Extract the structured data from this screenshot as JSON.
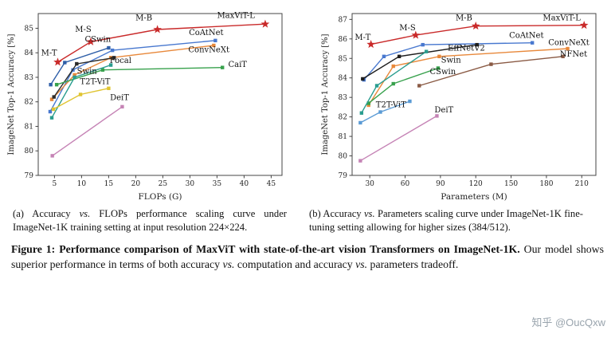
{
  "watermark": {
    "text": "知乎 @OucQxw",
    "color": "#99a4ad"
  },
  "captions": {
    "a": {
      "parts": [
        {
          "t": "(a) Accuracy "
        },
        {
          "t": "vs.",
          "i": true
        },
        {
          "t": " FLOPs performance scaling curve under ImageNet-1K training setting at input resolution 224×224."
        }
      ]
    },
    "b": {
      "parts": [
        {
          "t": "(b) Accuracy "
        },
        {
          "t": "vs.",
          "i": true
        },
        {
          "t": " Parameters scaling curve under ImageNet-1K fine-tuning setting allowing for higher sizes (384/512)."
        }
      ]
    },
    "figure": {
      "parts": [
        {
          "t": "Figure 1: ",
          "b": true
        },
        {
          "t": "Performance comparison of MaxViT with state-of-the-art vision Transformers on ImageNet-1K.",
          "b": true
        },
        {
          "t": " Our model shows superior performance in terms of both accuracy "
        },
        {
          "t": "vs.",
          "i": true
        },
        {
          "t": " computation and accuracy "
        },
        {
          "t": "vs.",
          "i": true
        },
        {
          "t": " parameters tradeoff."
        }
      ]
    }
  },
  "chart_data": [
    {
      "type": "line",
      "title": "",
      "xlabel": "FLOPs (G)",
      "ylabel": "ImageNet Top-1 Accuracy [%]",
      "xlim": [
        2,
        47
      ],
      "ylim": [
        79,
        85.6
      ],
      "xticks": [
        5,
        10,
        15,
        20,
        25,
        30,
        35,
        40,
        45
      ],
      "yticks": [
        79,
        80,
        81,
        82,
        83,
        84,
        85
      ],
      "grid": false,
      "legend": "inline-annotations",
      "series": [
        {
          "name": "MaxViT",
          "color": "#c92a2a",
          "marker": "star",
          "points": [
            [
              5.6,
              83.62
            ],
            [
              11.7,
              84.45
            ],
            [
              24,
              84.95
            ],
            [
              43.9,
              85.17
            ]
          ],
          "annotations": [
            {
              "text": "M-T",
              "x": 4.0,
              "y": 83.9
            },
            {
              "text": "M-S",
              "x": 10.3,
              "y": 84.85
            },
            {
              "text": "M-B",
              "x": 21.5,
              "y": 85.32
            },
            {
              "text": "MaxViT-L",
              "x": 38.5,
              "y": 85.42
            }
          ]
        },
        {
          "name": "CoAtNet",
          "color": "#4878cf",
          "marker": "square",
          "points": [
            [
              4.2,
              81.6
            ],
            [
              8.4,
              83.3
            ],
            [
              15.7,
              84.1
            ],
            [
              34.7,
              84.5
            ]
          ],
          "annotations": [
            {
              "text": "CoAtNet",
              "x": 33,
              "y": 84.72
            }
          ]
        },
        {
          "name": "CSwin",
          "color": "#2f5fa8",
          "marker": "square",
          "points": [
            [
              4.3,
              82.7
            ],
            [
              6.9,
              83.6
            ],
            [
              15,
              84.2
            ]
          ],
          "annotations": [
            {
              "text": "CSwin",
              "x": 13,
              "y": 84.45
            }
          ]
        },
        {
          "name": "ConvNeXt",
          "color": "#e8883a",
          "marker": "square",
          "points": [
            [
              4.5,
              82.1
            ],
            [
              8.7,
              83.1
            ],
            [
              15.4,
              83.8
            ],
            [
              34.4,
              84.3
            ]
          ],
          "annotations": [
            {
              "text": "ConvNeXt",
              "x": 33.5,
              "y": 84.02
            }
          ]
        },
        {
          "name": "Focal",
          "color": "#2b2b2b",
          "marker": "square",
          "points": [
            [
              4.9,
              82.2
            ],
            [
              9.1,
              83.55
            ],
            [
              16,
              83.8
            ]
          ],
          "annotations": [
            {
              "text": "Focal",
              "x": 17.2,
              "y": 83.58
            }
          ]
        },
        {
          "name": "CaiT",
          "color": "#37a14c",
          "marker": "square",
          "points": [
            [
              5.4,
              82.7
            ],
            [
              13.9,
              83.3
            ],
            [
              36,
              83.4
            ]
          ],
          "annotations": [
            {
              "text": "CaiT",
              "x": 38.8,
              "y": 83.42
            }
          ]
        },
        {
          "name": "Swin",
          "color": "#2a9d8f",
          "marker": "square",
          "points": [
            [
              4.5,
              81.35
            ],
            [
              8.7,
              83.0
            ],
            [
              15.4,
              83.5
            ]
          ],
          "annotations": [
            {
              "text": "Swin",
              "x": 11,
              "y": 83.15
            }
          ]
        },
        {
          "name": "T2T-ViT",
          "color": "#e0c431",
          "marker": "square",
          "points": [
            [
              4.8,
              81.7
            ],
            [
              9.8,
              82.3
            ],
            [
              15,
              82.55
            ]
          ],
          "annotations": [
            {
              "text": "T2T-ViT",
              "x": 12.5,
              "y": 82.72
            }
          ]
        },
        {
          "name": "DeiT",
          "color": "#c583b5",
          "marker": "square",
          "points": [
            [
              4.6,
              79.8
            ],
            [
              17.5,
              81.8
            ]
          ],
          "annotations": [
            {
              "text": "DeiT",
              "x": 17,
              "y": 82.08
            }
          ]
        }
      ]
    },
    {
      "type": "line",
      "title": "",
      "xlabel": "Parameters (M)",
      "ylabel": "ImageNet Top-1 Accuracy [%]",
      "xlim": [
        15,
        222
      ],
      "ylim": [
        79,
        87.3
      ],
      "xticks": [
        30,
        60,
        90,
        120,
        150,
        180,
        210
      ],
      "yticks": [
        79,
        80,
        81,
        82,
        83,
        84,
        85,
        86,
        87
      ],
      "grid": false,
      "legend": "inline-annotations",
      "series": [
        {
          "name": "MaxViT",
          "color": "#c92a2a",
          "marker": "star",
          "points": [
            [
              31,
              85.72
            ],
            [
              69,
              86.19
            ],
            [
              120,
              86.66
            ],
            [
              212,
              86.7
            ]
          ],
          "annotations": [
            {
              "text": "M-T",
              "x": 24,
              "y": 85.95
            },
            {
              "text": "M-S",
              "x": 62,
              "y": 86.45
            },
            {
              "text": "M-B",
              "x": 110,
              "y": 86.95
            },
            {
              "text": "MaxViT-L",
              "x": 193,
              "y": 86.95
            }
          ]
        },
        {
          "name": "CoAtNet",
          "color": "#4878cf",
          "marker": "square",
          "points": [
            [
              25,
              83.9
            ],
            [
              42,
              85.1
            ],
            [
              75,
              85.7
            ],
            [
              168,
              85.8
            ]
          ],
          "annotations": [
            {
              "text": "CoAtNet",
              "x": 163,
              "y": 86.05
            }
          ]
        },
        {
          "name": "EffNetV2",
          "color": "#1d1d1d",
          "marker": "square",
          "points": [
            [
              24,
              83.95
            ],
            [
              55,
              85.1
            ],
            [
              121,
              85.7
            ]
          ],
          "annotations": [
            {
              "text": "EffNetV2",
              "x": 112,
              "y": 85.4
            }
          ]
        },
        {
          "name": "ConvNeXt",
          "color": "#e8883a",
          "marker": "square",
          "points": [
            [
              29,
              82.6
            ],
            [
              50,
              84.6
            ],
            [
              89,
              85.1
            ],
            [
              198,
              85.5
            ]
          ],
          "annotations": [
            {
              "text": "ConvNeXt",
              "x": 199,
              "y": 85.68
            }
          ]
        },
        {
          "name": "NFNet",
          "color": "#8a5a44",
          "marker": "square",
          "points": [
            [
              72,
              83.6
            ],
            [
              133,
              84.7
            ],
            [
              194,
              85.1
            ]
          ],
          "annotations": [
            {
              "text": "NFNet",
              "x": 203,
              "y": 85.1
            }
          ]
        },
        {
          "name": "Swin",
          "color": "#37a14c",
          "marker": "square",
          "points": [
            [
              29,
              82.7
            ],
            [
              50,
              83.7
            ],
            [
              88,
              84.5
            ]
          ],
          "annotations": [
            {
              "text": "Swin",
              "x": 99,
              "y": 84.78
            }
          ]
        },
        {
          "name": "CSwin",
          "color": "#2a9d8f",
          "marker": "square",
          "points": [
            [
              23,
              82.2
            ],
            [
              36,
              83.6
            ],
            [
              78,
              85.35
            ]
          ],
          "annotations": [
            {
              "text": "CSwin",
              "x": 92,
              "y": 84.2
            }
          ]
        },
        {
          "name": "T2T-ViT",
          "color": "#5b9bd5",
          "marker": "square",
          "points": [
            [
              22,
              81.7
            ],
            [
              39,
              82.25
            ],
            [
              64,
              82.8
            ]
          ],
          "annotations": [
            {
              "text": "T2T-ViT",
              "x": 48,
              "y": 82.5
            }
          ]
        },
        {
          "name": "DeiT",
          "color": "#c583b5",
          "marker": "square",
          "points": [
            [
              22,
              79.75
            ],
            [
              87,
              82.05
            ]
          ],
          "annotations": [
            {
              "text": "DeiT",
              "x": 93,
              "y": 82.22
            }
          ]
        }
      ]
    }
  ]
}
